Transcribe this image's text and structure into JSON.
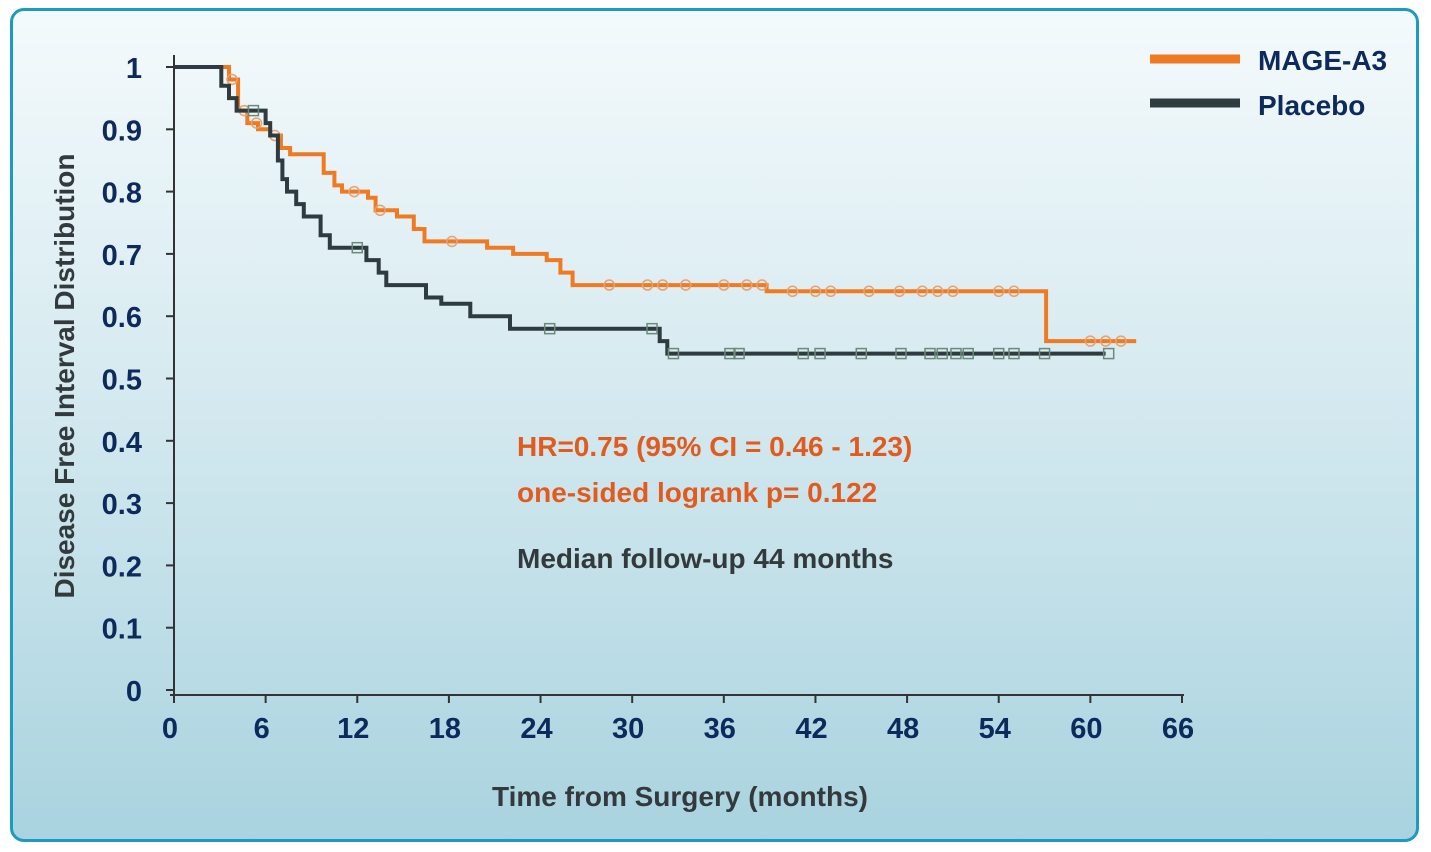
{
  "chart_data": {
    "type": "line",
    "subtype": "kaplan-meier",
    "title": "",
    "xlabel": "Time from Surgery (months)",
    "ylabel": "Disease Free Interval Distribution",
    "xlim": [
      0,
      66
    ],
    "ylim": [
      0,
      1
    ],
    "x_ticks": [
      0,
      6,
      12,
      18,
      24,
      30,
      36,
      42,
      48,
      54,
      60,
      66
    ],
    "y_ticks": [
      0,
      0.1,
      0.2,
      0.3,
      0.4,
      0.5,
      0.6,
      0.7,
      0.8,
      0.9,
      1
    ],
    "y_tick_labels": [
      "0",
      "0.1",
      "0.2",
      "0.3",
      "0.4",
      "0.5",
      "0.6",
      "0.7",
      "0.8",
      "0.9",
      "1"
    ],
    "grid": false,
    "legend_position": "top-right",
    "series": [
      {
        "name": "MAGE-A3",
        "color": "#f07a22",
        "points": [
          [
            0,
            1
          ],
          [
            3.6,
            1
          ],
          [
            3.6,
            0.98
          ],
          [
            4.2,
            0.98
          ],
          [
            4.2,
            0.93
          ],
          [
            4.8,
            0.93
          ],
          [
            4.8,
            0.91
          ],
          [
            5.5,
            0.91
          ],
          [
            5.5,
            0.9
          ],
          [
            6.3,
            0.9
          ],
          [
            6.3,
            0.89
          ],
          [
            7,
            0.89
          ],
          [
            7,
            0.87
          ],
          [
            7.6,
            0.87
          ],
          [
            7.6,
            0.86
          ],
          [
            9.8,
            0.86
          ],
          [
            9.8,
            0.83
          ],
          [
            10.5,
            0.83
          ],
          [
            10.5,
            0.81
          ],
          [
            11,
            0.81
          ],
          [
            11,
            0.8
          ],
          [
            12.7,
            0.8
          ],
          [
            12.7,
            0.79
          ],
          [
            13.2,
            0.79
          ],
          [
            13.2,
            0.77
          ],
          [
            14.6,
            0.77
          ],
          [
            14.6,
            0.76
          ],
          [
            15.7,
            0.76
          ],
          [
            15.7,
            0.74
          ],
          [
            16.4,
            0.74
          ],
          [
            16.4,
            0.72
          ],
          [
            20.5,
            0.72
          ],
          [
            20.5,
            0.71
          ],
          [
            22.2,
            0.71
          ],
          [
            22.2,
            0.7
          ],
          [
            24.4,
            0.7
          ],
          [
            24.4,
            0.69
          ],
          [
            25.3,
            0.69
          ],
          [
            25.3,
            0.67
          ],
          [
            26.1,
            0.67
          ],
          [
            26.1,
            0.65
          ],
          [
            38.8,
            0.65
          ],
          [
            38.8,
            0.64
          ],
          [
            57.1,
            0.64
          ],
          [
            57.1,
            0.56
          ],
          [
            63,
            0.56
          ]
        ],
        "censor_x": [
          3.8,
          4.6,
          5.4,
          6.6,
          11.8,
          13.5,
          18.2,
          28.5,
          31,
          32,
          33.5,
          36,
          37.5,
          38.5,
          40.5,
          42,
          43,
          45.5,
          47.5,
          49,
          50,
          51,
          54,
          55,
          60,
          61,
          62
        ]
      },
      {
        "name": "Placebo",
        "color": "#2e3b40",
        "points": [
          [
            0,
            1
          ],
          [
            3.1,
            1
          ],
          [
            3.1,
            0.97
          ],
          [
            3.6,
            0.97
          ],
          [
            3.6,
            0.95
          ],
          [
            4.1,
            0.95
          ],
          [
            4.1,
            0.93
          ],
          [
            6,
            0.93
          ],
          [
            6,
            0.91
          ],
          [
            6.3,
            0.91
          ],
          [
            6.3,
            0.89
          ],
          [
            6.8,
            0.89
          ],
          [
            6.8,
            0.85
          ],
          [
            7.1,
            0.85
          ],
          [
            7.1,
            0.82
          ],
          [
            7.4,
            0.82
          ],
          [
            7.4,
            0.8
          ],
          [
            8,
            0.8
          ],
          [
            8,
            0.78
          ],
          [
            8.5,
            0.78
          ],
          [
            8.5,
            0.76
          ],
          [
            9.6,
            0.76
          ],
          [
            9.6,
            0.73
          ],
          [
            10.2,
            0.73
          ],
          [
            10.2,
            0.71
          ],
          [
            12.6,
            0.71
          ],
          [
            12.6,
            0.69
          ],
          [
            13.4,
            0.69
          ],
          [
            13.4,
            0.67
          ],
          [
            13.9,
            0.67
          ],
          [
            13.9,
            0.65
          ],
          [
            16.5,
            0.65
          ],
          [
            16.5,
            0.63
          ],
          [
            17.5,
            0.63
          ],
          [
            17.5,
            0.62
          ],
          [
            19.4,
            0.62
          ],
          [
            19.4,
            0.6
          ],
          [
            22,
            0.6
          ],
          [
            22,
            0.58
          ],
          [
            31.8,
            0.58
          ],
          [
            31.8,
            0.56
          ],
          [
            32.3,
            0.56
          ],
          [
            32.3,
            0.54
          ],
          [
            61,
            0.54
          ]
        ],
        "censor_x": [
          5.2,
          12,
          24.6,
          31.3,
          32.7,
          36.4,
          37,
          41.2,
          42.3,
          45,
          47.6,
          49.5,
          50.3,
          51.2,
          52,
          54,
          55,
          57,
          61.2
        ]
      }
    ]
  },
  "annotations": {
    "hr_line": "HR=0.75 (95% CI = 0.46 - 1.23)",
    "logrank_line": "one-sided  logrank p= 0.122",
    "followup_line": "Median follow-up 44 months"
  },
  "legend": [
    {
      "label": "MAGE-A3",
      "color": "#f07a22"
    },
    {
      "label": "Placebo",
      "color": "#2e3b40"
    }
  ]
}
